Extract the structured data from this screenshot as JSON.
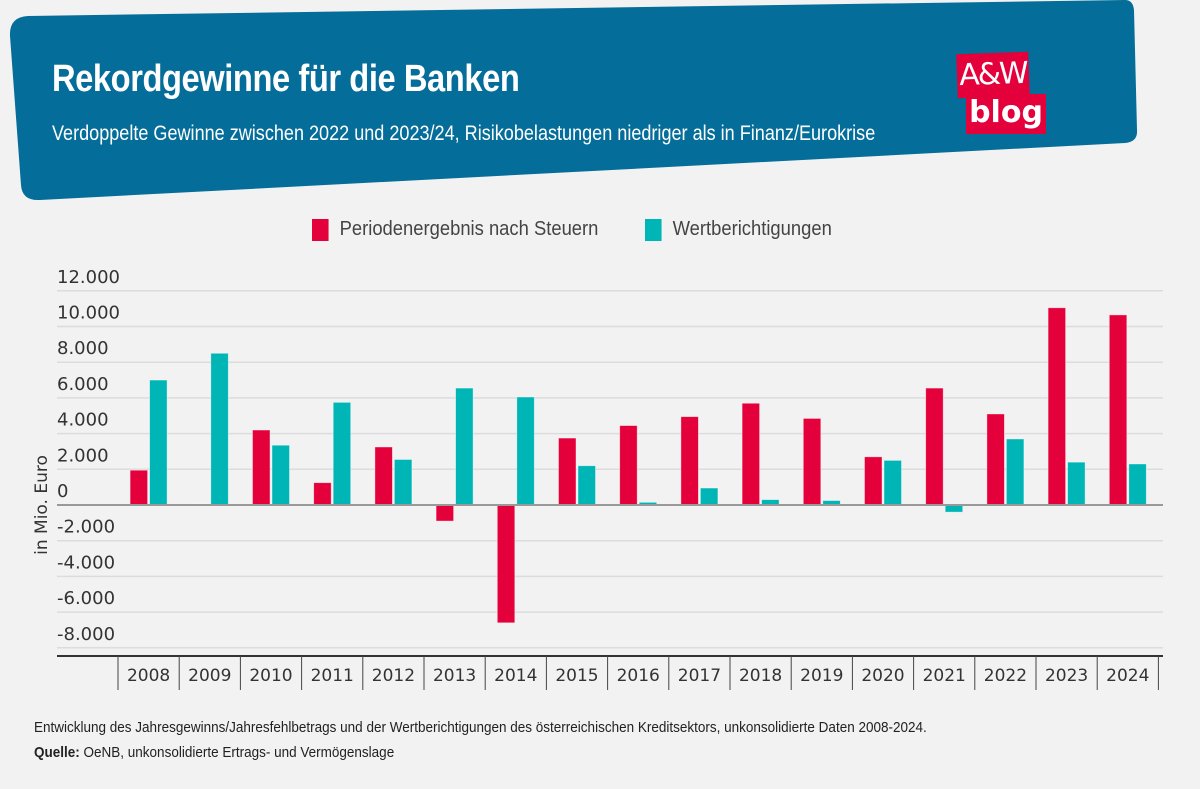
{
  "header": {
    "title": "Rekordgewinne für die Banken",
    "subtitle": "Verdoppelte Gewinne zwischen 2022 und 2023/24, Risikobelastungen niedriger als in Finanz/Eurokrise",
    "logo_line1": "A&W",
    "logo_line2": "blog"
  },
  "colors": {
    "banner": "#046d99",
    "logo": "#e4003a",
    "series_profit": "#e4003a",
    "series_writedowns": "#00b5b5",
    "background": "#f2f2f2"
  },
  "footer": {
    "note": "Entwicklung des Jahresgewinns/Jahresfehlbetrags und der Wertberichtigungen des österreichischen Kreditsektors, unkonsolidierte Daten 2008-2024.",
    "source_label": "Quelle:",
    "source_text": " OeNB, unkonsolidierte Ertrags- und Vermögenslage"
  },
  "chart_data": {
    "type": "bar",
    "title": "Rekordgewinne für die Banken",
    "xlabel": "",
    "ylabel": "in Mio. Euro",
    "ylim": [
      -8000,
      12000
    ],
    "yticks": [
      12000,
      10000,
      8000,
      6000,
      4000,
      2000,
      0,
      -2000,
      -4000,
      -6000,
      -8000
    ],
    "ytick_labels": [
      "12.000",
      "10.000",
      "8.000",
      "6.000",
      "4.000",
      "2.000",
      "0",
      "-2.000",
      "-4.000",
      "-6.000",
      "-8.000"
    ],
    "grid": true,
    "legend_position": "top-center",
    "categories": [
      "2008",
      "2009",
      "2010",
      "2011",
      "2012",
      "2013",
      "2014",
      "2015",
      "2016",
      "2017",
      "2018",
      "2019",
      "2020",
      "2021",
      "2022",
      "2023",
      "2024"
    ],
    "series": [
      {
        "name": "Periodenergebnis nach Steuern",
        "color": "#e4003a",
        "values": [
          1950,
          50,
          4200,
          1250,
          3250,
          -900,
          -6600,
          3750,
          4450,
          4950,
          5700,
          4850,
          2700,
          6550,
          5100,
          11050,
          10650
        ]
      },
      {
        "name": "Wertberichtigungen",
        "color": "#00b5b5",
        "values": [
          7000,
          8500,
          3350,
          5750,
          2550,
          6550,
          6050,
          2200,
          150,
          950,
          300,
          250,
          2500,
          -400,
          3700,
          2400,
          2300
        ]
      }
    ]
  }
}
